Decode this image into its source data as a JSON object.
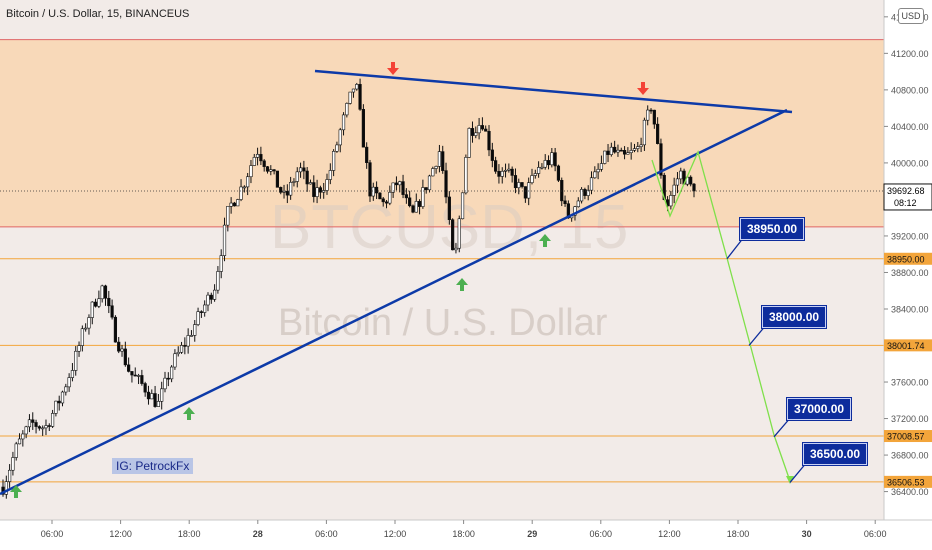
{
  "header": {
    "title": "Bitcoin / U.S. Dollar, 15, BINANCEUS",
    "currency_button": "USD"
  },
  "watermark": {
    "ticker": "BTCUSD, 15",
    "name": "Bitcoin / U.S. Dollar"
  },
  "badge": {
    "label": "IG: PetrockFx"
  },
  "chart_data": {
    "type": "candlestick",
    "title": "Bitcoin / U.S. Dollar, 15, BINANCEUS",
    "ylim": [
      36200,
      41700
    ],
    "y_ticks": [
      36400,
      36800,
      37200,
      37600,
      38000,
      38400,
      38800,
      39200,
      39600,
      40000,
      40400,
      40800,
      41200,
      41600
    ],
    "x_ticks": [
      "06:00",
      "12:00",
      "18:00",
      "28",
      "06:00",
      "12:00",
      "18:00",
      "29",
      "06:00",
      "12:00",
      "18:00",
      "30",
      "06:00"
    ],
    "current_price": {
      "value": "39692.68",
      "countdown": "08:12"
    },
    "price_path": [
      36450,
      36900,
      37150,
      37100,
      37400,
      37800,
      38300,
      38650,
      38100,
      37700,
      37550,
      37350,
      37800,
      38050,
      38350,
      38650,
      39500,
      39750,
      40150,
      39900,
      39600,
      39950,
      39650,
      39800,
      40400,
      40900,
      39700,
      39550,
      39800,
      39400,
      39750,
      40150,
      38850,
      40350,
      40450,
      39900,
      39850,
      39650,
      39950,
      40050,
      39400,
      39650,
      39850,
      40150,
      40050,
      40150,
      40650,
      39500,
      39900,
      39692.68
    ],
    "zone": {
      "from": 39300,
      "to": 41350,
      "color": "#f8d9b9"
    },
    "horizontal_levels": [
      {
        "price": 41350,
        "color": "#e06666"
      },
      {
        "price": 39300,
        "color": "#e06666"
      },
      {
        "price": 38950,
        "color": "#f3a53b",
        "axis_label": "38950.00"
      },
      {
        "price": 38001.74,
        "color": "#f3a53b",
        "axis_label": "38001.74"
      },
      {
        "price": 37008.57,
        "color": "#f3a53b",
        "axis_label": "37008.57"
      },
      {
        "price": 36506.53,
        "color": "#f3a53b",
        "axis_label": "36506.53"
      }
    ],
    "targets": [
      {
        "label": "38950.00",
        "price": 38950
      },
      {
        "label": "38000.00",
        "price": 38000
      },
      {
        "label": "37000.00",
        "price": 37000
      },
      {
        "label": "36500.00",
        "price": 36500
      }
    ],
    "colors": {
      "up": "#26a69a",
      "down": "#0a0a0a",
      "trendline": "#0d3aa8",
      "projection": "#7fe04a",
      "arrow_up": "#4caf50",
      "arrow_down": "#f44336"
    }
  }
}
